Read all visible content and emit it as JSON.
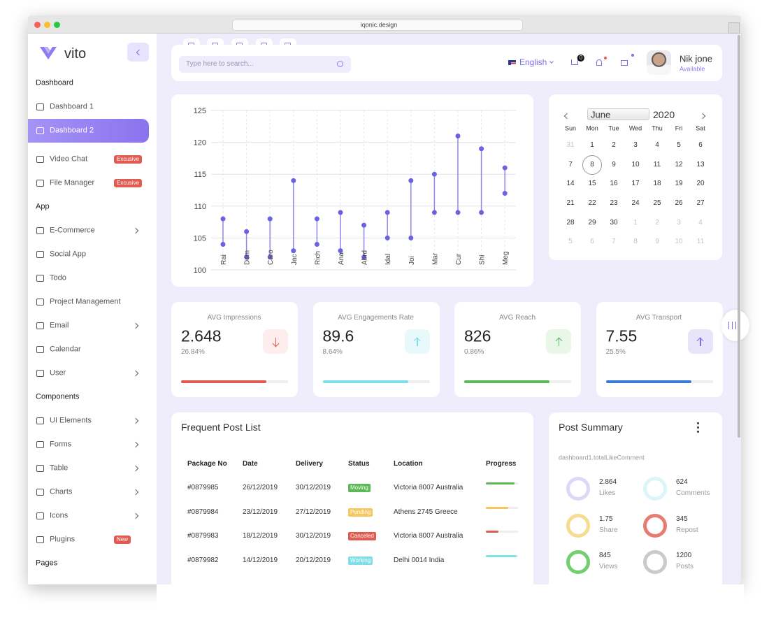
{
  "browser": {
    "url": "iqonic.design"
  },
  "sidebar": {
    "brand": "vito",
    "sections": [
      {
        "title": "Dashboard",
        "items": [
          {
            "label": "Dashboard 1"
          },
          {
            "label": "Dashboard 2",
            "active": true
          },
          {
            "label": "Video Chat",
            "badge": "Excusive"
          },
          {
            "label": "File Manager",
            "badge": "Excusive"
          }
        ]
      },
      {
        "title": "App",
        "items": [
          {
            "label": "E-Commerce",
            "sub": true
          },
          {
            "label": "Social App"
          },
          {
            "label": "Todo"
          },
          {
            "label": "Project Management"
          },
          {
            "label": "Email",
            "sub": true
          },
          {
            "label": "Calendar"
          },
          {
            "label": "User",
            "sub": true
          }
        ]
      },
      {
        "title": "Components",
        "items": [
          {
            "label": "UI Elements",
            "sub": true
          },
          {
            "label": "Forms",
            "sub": true
          },
          {
            "label": "Table",
            "sub": true
          },
          {
            "label": "Charts",
            "sub": true
          },
          {
            "label": "Icons",
            "sub": true
          },
          {
            "label": "Plugins",
            "badge": "New"
          }
        ]
      },
      {
        "title": "Pages",
        "items": []
      }
    ]
  },
  "header": {
    "search_placeholder": "Type here to search...",
    "language": "English",
    "cart_count": 0,
    "user_name": "Nik jone",
    "user_status": "Available"
  },
  "chart_data": {
    "type": "dumbbell",
    "categories": [
      "Rai",
      "Dem",
      "Caro",
      "Jac",
      "Rich",
      "Ana",
      "Abrd",
      "Idal",
      "Joi",
      "Mar",
      "Cur",
      "Shi",
      "Meg"
    ],
    "low": [
      104,
      102,
      102,
      103,
      104,
      103,
      102,
      105,
      105,
      109,
      109,
      109,
      112
    ],
    "high": [
      108,
      106,
      108,
      114,
      108,
      109,
      107,
      109,
      114,
      115,
      121,
      119,
      116
    ],
    "color": "#6b62e0",
    "ylim": [
      100,
      125
    ],
    "yticks": [
      100,
      105,
      110,
      115,
      120,
      125
    ],
    "grid": true
  },
  "calendar": {
    "month": "June",
    "year": "2020",
    "weekdays": [
      "Sun",
      "Mon",
      "Tue",
      "Wed",
      "Thu",
      "Fri",
      "Sat"
    ],
    "weeks": [
      [
        31,
        1,
        2,
        3,
        4,
        5,
        6
      ],
      [
        7,
        8,
        9,
        10,
        11,
        12,
        13
      ],
      [
        14,
        15,
        16,
        17,
        18,
        19,
        20
      ],
      [
        21,
        22,
        23,
        24,
        25,
        26,
        27
      ],
      [
        28,
        29,
        30,
        1,
        2,
        3,
        4
      ],
      [
        5,
        6,
        7,
        8,
        9,
        10,
        11
      ]
    ],
    "selected": 8
  },
  "stats": [
    {
      "title": "AVG Impressions",
      "value": "2.648",
      "change": "26.84%",
      "trend": "down",
      "progress": 80,
      "color": "#e15b50",
      "bg": "#fdeeed"
    },
    {
      "title": "AVG Engagements Rate",
      "value": "89.6",
      "change": "8.64%",
      "trend": "up",
      "progress": 80,
      "color": "#7fdfe8",
      "bg": "#e7f9fb"
    },
    {
      "title": "AVG Reach",
      "value": "826",
      "change": "0.86%",
      "trend": "up",
      "progress": 80,
      "color": "#5db85a",
      "bg": "#e9f7e9"
    },
    {
      "title": "AVG Transport",
      "value": "7.55",
      "change": "25.5%",
      "trend": "up",
      "progress": 80,
      "color": "#3b7ad8",
      "bg": "#e8e5fb",
      "icon": "#7b6fe6"
    }
  ],
  "post_list": {
    "title": "Frequent Post List",
    "columns": [
      "Package No",
      "Date",
      "Delivery",
      "Status",
      "Location",
      "Progress"
    ],
    "rows": [
      {
        "package": "#0879985",
        "date": "26/12/2019",
        "delivery": "30/12/2019",
        "status": "Moving",
        "location": "Victoria 8007 Australia",
        "progress": 90,
        "color": "#5db85a"
      },
      {
        "package": "#0879984",
        "date": "23/12/2019",
        "delivery": "27/12/2019",
        "status": "Pending",
        "location": "Athens 2745 Greece",
        "progress": 70,
        "color": "#f5c75e"
      },
      {
        "package": "#0879983",
        "date": "18/12/2019",
        "delivery": "30/12/2019",
        "status": "Canceled",
        "location": "Victoria 8007 Australia",
        "progress": 40,
        "color": "#e15b50"
      },
      {
        "package": "#0879982",
        "date": "14/12/2019",
        "delivery": "20/12/2019",
        "status": "Working",
        "location": "Delhi 0014 India",
        "progress": 95,
        "color": "#7fdfe8"
      }
    ]
  },
  "post_summary": {
    "title": "Post Summary",
    "subtitle": "dashboard1.totalLikeComment",
    "items": [
      {
        "value": "2.864",
        "label": "Likes",
        "color": "#dcd8f8"
      },
      {
        "value": "624",
        "label": "Comments",
        "color": "#dbf5f8"
      },
      {
        "value": "1.75",
        "label": "Share",
        "color": "#f6dc90"
      },
      {
        "value": "345",
        "label": "Repost",
        "color": "#e77d72"
      },
      {
        "value": "845",
        "label": "Views",
        "color": "#74cd6f"
      },
      {
        "value": "1200",
        "label": "Posts",
        "color": "#cacaca"
      }
    ]
  }
}
